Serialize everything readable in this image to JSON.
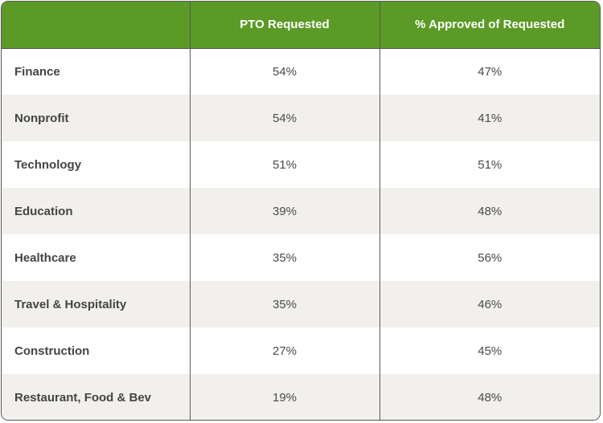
{
  "table": {
    "headers": [
      "",
      "PTO Requested",
      "% Approved of Requested"
    ],
    "rows": [
      {
        "industry": "Finance",
        "pto_requested": "54%",
        "approved": "47%"
      },
      {
        "industry": "Nonprofit",
        "pto_requested": "54%",
        "approved": "41%"
      },
      {
        "industry": "Technology",
        "pto_requested": "51%",
        "approved": "51%"
      },
      {
        "industry": "Education",
        "pto_requested": "39%",
        "approved": "48%"
      },
      {
        "industry": "Healthcare",
        "pto_requested": "35%",
        "approved": "56%"
      },
      {
        "industry": "Travel & Hospitality",
        "pto_requested": "35%",
        "approved": "46%"
      },
      {
        "industry": "Construction",
        "pto_requested": "27%",
        "approved": "45%"
      },
      {
        "industry": "Restaurant, Food & Bev",
        "pto_requested": "19%",
        "approved": "48%"
      }
    ]
  },
  "colors": {
    "header_bg": "#5b9a26",
    "header_text": "#ffffff",
    "row_alt_bg": "#f1f0ec",
    "border": "#595959"
  }
}
